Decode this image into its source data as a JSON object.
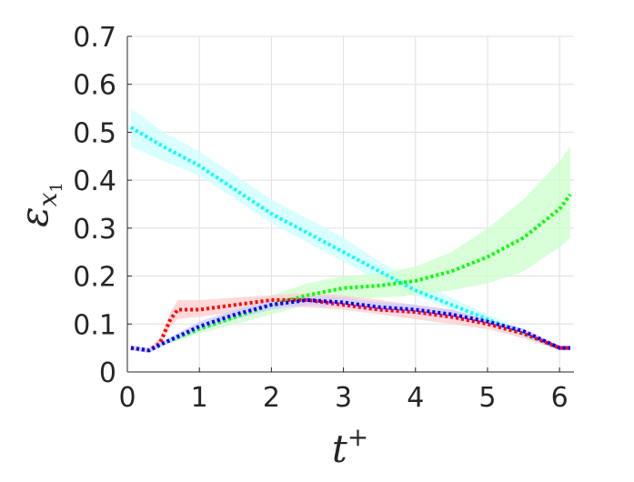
{
  "chart_data": {
    "type": "line",
    "title": "",
    "xlabel": "t",
    "xlabel_superscript": "+",
    "ylabel": "ε",
    "ylabel_subscript": "x",
    "ylabel_subsubscript": "1",
    "xlim": [
      0,
      6.2
    ],
    "ylim": [
      0,
      0.7
    ],
    "xticks": [
      0,
      1,
      2,
      3,
      4,
      5,
      6
    ],
    "yticks": [
      0,
      0.1,
      0.2,
      0.3,
      0.4,
      0.5,
      0.6,
      0.7
    ],
    "xtick_labels": [
      "0",
      "1",
      "2",
      "3",
      "4",
      "5",
      "6"
    ],
    "ytick_labels": [
      "0",
      "0.1",
      "0.2",
      "0.3",
      "0.4",
      "0.5",
      "0.6",
      "0.7"
    ],
    "grid": true,
    "legend": "none",
    "line_style": "dotted",
    "series": [
      {
        "color": "#00ffff",
        "band_color": "#ccffff",
        "x": [
          0.05,
          0.5,
          1,
          1.5,
          2,
          2.5,
          3,
          3.5,
          4,
          4.5,
          5,
          5.5,
          6,
          6.15
        ],
        "values": [
          0.51,
          0.47,
          0.43,
          0.38,
          0.33,
          0.29,
          0.25,
          0.21,
          0.17,
          0.14,
          0.11,
          0.08,
          0.05,
          0.05
        ],
        "lower": [
          0.47,
          0.44,
          0.41,
          0.36,
          0.31,
          0.27,
          0.23,
          0.19,
          0.16,
          0.13,
          0.1,
          0.075,
          0.045,
          0.045
        ],
        "upper": [
          0.55,
          0.5,
          0.46,
          0.41,
          0.36,
          0.32,
          0.28,
          0.23,
          0.19,
          0.155,
          0.12,
          0.09,
          0.055,
          0.055
        ]
      },
      {
        "color": "#00ff00",
        "band_color": "#ccffcc",
        "x": [
          0.05,
          0.3,
          0.5,
          1,
          1.5,
          2,
          2.5,
          3,
          3.5,
          4,
          4.5,
          5,
          5.5,
          6,
          6.15
        ],
        "values": [
          0.05,
          0.045,
          0.06,
          0.09,
          0.115,
          0.14,
          0.16,
          0.175,
          0.18,
          0.19,
          0.21,
          0.24,
          0.28,
          0.34,
          0.37
        ],
        "lower": [
          0.045,
          0.04,
          0.055,
          0.08,
          0.1,
          0.12,
          0.14,
          0.15,
          0.155,
          0.16,
          0.17,
          0.185,
          0.21,
          0.26,
          0.28
        ],
        "upper": [
          0.055,
          0.05,
          0.065,
          0.1,
          0.13,
          0.16,
          0.185,
          0.2,
          0.205,
          0.22,
          0.25,
          0.3,
          0.36,
          0.44,
          0.47
        ]
      },
      {
        "color": "#ff0000",
        "band_color": "#ffcccc",
        "x": [
          0.05,
          0.3,
          0.45,
          0.6,
          0.7,
          1,
          1.5,
          2,
          2.5,
          3,
          3.5,
          4,
          4.5,
          5,
          5.5,
          6,
          6.15
        ],
        "values": [
          0.05,
          0.045,
          0.06,
          0.11,
          0.13,
          0.13,
          0.14,
          0.15,
          0.15,
          0.14,
          0.13,
          0.125,
          0.115,
          0.1,
          0.08,
          0.05,
          0.05
        ],
        "lower": [
          0.045,
          0.04,
          0.05,
          0.095,
          0.11,
          0.115,
          0.125,
          0.135,
          0.135,
          0.13,
          0.12,
          0.11,
          0.1,
          0.09,
          0.07,
          0.045,
          0.045
        ],
        "upper": [
          0.055,
          0.05,
          0.07,
          0.125,
          0.15,
          0.15,
          0.155,
          0.16,
          0.165,
          0.16,
          0.15,
          0.14,
          0.13,
          0.11,
          0.09,
          0.055,
          0.055
        ]
      },
      {
        "color": "#0000ff",
        "band_color": "#ccccff",
        "x": [
          0.05,
          0.3,
          0.5,
          1,
          1.5,
          2,
          2.5,
          3,
          3.5,
          4,
          4.5,
          5,
          5.5,
          6,
          6.15
        ],
        "values": [
          0.05,
          0.045,
          0.06,
          0.095,
          0.12,
          0.14,
          0.15,
          0.145,
          0.135,
          0.13,
          0.12,
          0.105,
          0.085,
          0.05,
          0.05
        ],
        "lower": [
          0.045,
          0.04,
          0.055,
          0.085,
          0.11,
          0.13,
          0.14,
          0.135,
          0.125,
          0.12,
          0.11,
          0.1,
          0.08,
          0.045,
          0.045
        ],
        "upper": [
          0.055,
          0.05,
          0.065,
          0.105,
          0.13,
          0.15,
          0.16,
          0.155,
          0.145,
          0.14,
          0.13,
          0.11,
          0.09,
          0.055,
          0.055
        ]
      }
    ]
  }
}
